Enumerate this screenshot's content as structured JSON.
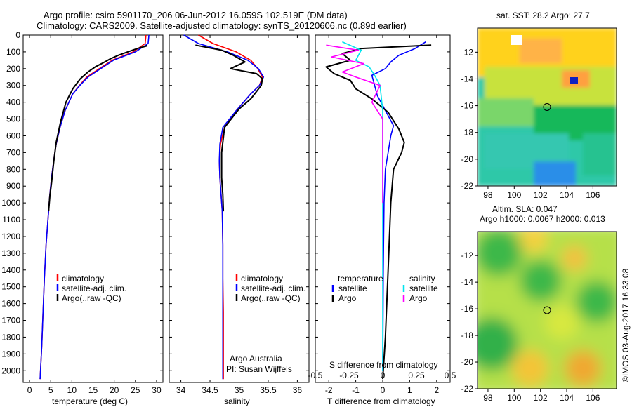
{
  "header": {
    "line1": "Argo profile: csiro 5901170_206 06-Jun-2012 16.059S 102.519E (DM data)",
    "line2": "Climatology: CARS2009. Satellite-adjusted climatology: synTS_20120606.nc (0.89d earlier)"
  },
  "colors": {
    "climatology": "#ff0000",
    "satellite": "#0000ff",
    "argo": "#000000",
    "salinity_satellite": "#00e5ee",
    "salinity_argo": "#ff00ff"
  },
  "chart_data": [
    {
      "type": "line",
      "xlabel": "temperature (deg C)",
      "ylabel": "",
      "xlim": [
        -1.5,
        31.5
      ],
      "ylim": [
        2070,
        0
      ],
      "xticks": [
        0,
        5,
        10,
        15,
        20,
        25,
        30
      ],
      "yticks": [
        0,
        100,
        200,
        300,
        400,
        500,
        600,
        700,
        800,
        900,
        1000,
        1100,
        1200,
        1300,
        1400,
        1500,
        1600,
        1700,
        1800,
        1900,
        2000
      ],
      "legend": [
        "climatology",
        "satellite-adj. clim.",
        "Argo(..raw -QC)"
      ],
      "series": [
        {
          "name": "climatology",
          "color": "#ff0000",
          "x": [
            27.5,
            27.3,
            24.5,
            19.5,
            16.5,
            13.5,
            11.8,
            10.2,
            8.4,
            7.2,
            6.3,
            5.7,
            5.2,
            4.8,
            4.5,
            3.9,
            3.5,
            3.2,
            2.9,
            2.7,
            2.5
          ],
          "y": [
            0,
            50,
            100,
            150,
            200,
            250,
            300,
            350,
            450,
            550,
            650,
            750,
            850,
            950,
            1050,
            1250,
            1450,
            1650,
            1850,
            1950,
            2050
          ]
        },
        {
          "name": "satellite-adj. clim.",
          "color": "#0000ff",
          "x": [
            28.2,
            28.0,
            25.0,
            19.8,
            16.8,
            13.8,
            11.9,
            10.2,
            8.4,
            7.2,
            6.3,
            5.7,
            5.2,
            4.8,
            4.5,
            3.9,
            3.5,
            3.2,
            2.9,
            2.7,
            2.5
          ],
          "y": [
            0,
            50,
            100,
            150,
            200,
            250,
            300,
            350,
            450,
            550,
            650,
            750,
            850,
            950,
            1050,
            1250,
            1450,
            1650,
            1850,
            1950,
            2050
          ]
        },
        {
          "name": "Argo(..raw -QC)",
          "color": "#000000",
          "x": [
            27.7,
            27.6,
            25.5,
            23.2,
            21.0,
            19.2,
            17.0,
            15.5,
            13.8,
            12.0,
            10.2,
            8.6,
            7.3,
            6.3,
            5.7,
            5.2,
            4.8,
            4.6,
            4.5
          ],
          "y": [
            60,
            65,
            80,
            100,
            120,
            140,
            170,
            190,
            220,
            260,
            320,
            400,
            520,
            640,
            760,
            880,
            960,
            1020,
            1050
          ]
        }
      ]
    },
    {
      "type": "line",
      "xlabel": "salinity",
      "ylabel": "",
      "xlim": [
        33.8,
        36.2
      ],
      "ylim": [
        2070,
        0
      ],
      "xticks": [
        34,
        34.5,
        35,
        35.5,
        36
      ],
      "legend": [
        "climatology",
        "satellite-adj. clim.",
        "Argo(..raw -QC)"
      ],
      "annotations": [
        "Argo Australia",
        "PI: Susan Wijffels"
      ],
      "series": [
        {
          "name": "climatology",
          "color": "#ff0000",
          "x": [
            34.3,
            34.55,
            34.95,
            35.2,
            35.32,
            35.4,
            35.35,
            35.2,
            34.95,
            34.75,
            34.68,
            34.66,
            34.67,
            34.69,
            34.71,
            34.72,
            34.72,
            34.73,
            34.73
          ],
          "y": [
            0,
            50,
            100,
            150,
            200,
            250,
            300,
            350,
            450,
            550,
            650,
            750,
            850,
            950,
            1050,
            1250,
            1450,
            1650,
            2050
          ]
        },
        {
          "name": "satellite-adj. clim.",
          "color": "#0000ff",
          "x": [
            34.05,
            34.3,
            34.8,
            35.15,
            35.33,
            35.42,
            35.35,
            35.2,
            34.95,
            34.72,
            34.67,
            34.66,
            34.67,
            34.69,
            34.71,
            34.72,
            34.72,
            34.72,
            34.72
          ],
          "y": [
            0,
            50,
            100,
            150,
            200,
            250,
            300,
            350,
            450,
            550,
            650,
            750,
            850,
            950,
            1050,
            1250,
            1450,
            1650,
            2050
          ]
        },
        {
          "name": "Argo(..raw -QC)",
          "color": "#000000",
          "x": [
            34.25,
            34.7,
            34.9,
            35.1,
            34.85,
            35.3,
            35.4,
            35.38,
            35.2,
            35.0,
            34.75,
            34.7,
            34.7,
            34.72,
            34.73
          ],
          "y": [
            60,
            90,
            120,
            160,
            200,
            230,
            260,
            300,
            380,
            440,
            550,
            700,
            850,
            950,
            1050
          ]
        }
      ]
    },
    {
      "type": "line",
      "xlabel": "T difference from climatology",
      "title": "S difference from climatology",
      "xlim": [
        -2.5,
        2.5
      ],
      "ylim": [
        2070,
        0
      ],
      "xticks_bottom": [
        -2,
        -1,
        0,
        1,
        2
      ],
      "xticks_top": [
        -0.5,
        -0.25,
        0,
        0.25,
        0.5
      ],
      "legend": [
        "temperature",
        "satellite",
        "Argo",
        "salinity",
        "satellite",
        "Argo"
      ],
      "series": [
        {
          "name": "temperature satellite",
          "color": "#0000ff",
          "x": [
            1.6,
            1.2,
            0.6,
            0.3,
            0.1,
            -0.4,
            -0.3,
            -0.2,
            0.0,
            0.2,
            0.4,
            0.3,
            0.2,
            0.1,
            0.05,
            0.02,
            0.0
          ],
          "y": [
            40,
            80,
            120,
            160,
            200,
            240,
            300,
            360,
            420,
            480,
            540,
            600,
            700,
            800,
            1000,
            1400,
            2000
          ]
        },
        {
          "name": "temperature Argo",
          "color": "#000000",
          "x": [
            1.8,
            -0.8,
            -1.5,
            -1.2,
            -2.1,
            -1.8,
            -1.2,
            -1.0,
            -0.4,
            0.2,
            0.6,
            0.8,
            0.7,
            0.4,
            0.3,
            0.2,
            0.1,
            0.0
          ],
          "y": [
            60,
            80,
            110,
            150,
            190,
            230,
            270,
            320,
            380,
            460,
            560,
            640,
            700,
            800,
            1000,
            1400,
            1800,
            2050
          ]
        },
        {
          "name": "salinity satellite",
          "color": "#00e5ee",
          "x": [
            -1.5,
            -0.8,
            -1.0,
            -0.5,
            -0.3,
            -0.1,
            0.0,
            0.0,
            0.0,
            0.0
          ],
          "y": [
            40,
            90,
            150,
            190,
            240,
            300,
            450,
            700,
            1000,
            2000
          ]
        },
        {
          "name": "salinity Argo",
          "color": "#ff00ff",
          "x": [
            -2.1,
            -0.9,
            -1.9,
            -0.7,
            -1.5,
            -1.0,
            -0.1,
            -0.4,
            0.0,
            0.0,
            0.0
          ],
          "y": [
            60,
            90,
            130,
            170,
            220,
            250,
            300,
            400,
            500,
            800,
            1000
          ]
        }
      ]
    },
    {
      "type": "heatmap",
      "title": "sat. SST: 28.2 Argo: 27.7",
      "xticks": [
        98,
        100,
        102,
        104,
        106
      ],
      "yticks": [
        -12,
        -14,
        -16,
        -18,
        -20,
        -22
      ],
      "xlim": [
        97.2,
        107.8
      ],
      "ylim": [
        -22,
        -10.2
      ],
      "marker": {
        "lon": 102.5,
        "lat": -16.1
      }
    },
    {
      "type": "heatmap",
      "title": "Altim. SLA: 0.047",
      "subtitle": "Argo h1000: 0.0067 h2000: 0.013",
      "xticks": [
        98,
        100,
        102,
        104,
        106
      ],
      "yticks": [
        -12,
        -14,
        -16,
        -18,
        -20,
        -22
      ],
      "xlim": [
        97.2,
        107.8
      ],
      "ylim": [
        -22,
        -10.2
      ],
      "marker": {
        "lon": 102.5,
        "lat": -16.1
      }
    }
  ],
  "footer": {
    "credit": "©IMOS 03-Aug-2017 16:33:08"
  }
}
